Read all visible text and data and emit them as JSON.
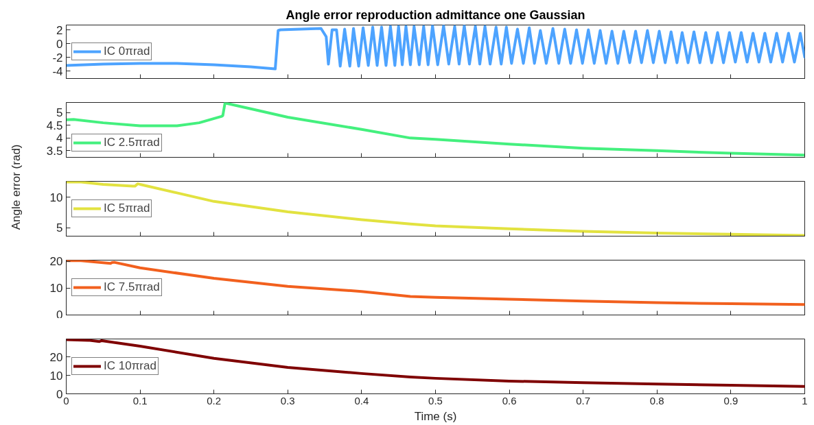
{
  "chart_data": [
    {
      "type": "line",
      "title": "Angle error reproduction admittance one Gaussian",
      "xlim": [
        0,
        1
      ],
      "xticks": [
        0,
        0.1,
        0.2,
        0.3,
        0.4,
        0.5,
        0.6,
        0.7,
        0.8,
        0.9,
        1
      ],
      "ylim": [
        -5.1,
        2.7
      ],
      "yticks": [
        -4,
        -2,
        0,
        2
      ],
      "tick_labels": "y",
      "legend": "left",
      "series": [
        {
          "name": "IC 0πrad",
          "color": "#4da3ff",
          "x": [
            0,
            0.05,
            0.1,
            0.15,
            0.2,
            0.25,
            0.283,
            0.287,
            0.29,
            0.345,
            0.352,
            0.355,
            0.36,
            0.366,
            0.371,
            0.377,
            0.384,
            0.389,
            0.396,
            0.402,
            0.409,
            0.415,
            0.421,
            0.427,
            0.433,
            0.439,
            0.445,
            0.45,
            0.455,
            0.46,
            0.466,
            0.471,
            0.478,
            0.484,
            0.49,
            0.496,
            0.503,
            0.511,
            0.518,
            0.526,
            0.532,
            0.539,
            0.546,
            0.554,
            0.56,
            0.567,
            0.574,
            0.582,
            0.589,
            0.596,
            0.603,
            0.611,
            0.619,
            0.627,
            0.634,
            0.642,
            0.65,
            0.659,
            0.667,
            0.675,
            0.683,
            0.691,
            0.699,
            0.707,
            0.715,
            0.723,
            0.731,
            0.739,
            0.747,
            0.755,
            0.763,
            0.771,
            0.779,
            0.787,
            0.795,
            0.803,
            0.811,
            0.819,
            0.827,
            0.834,
            0.842,
            0.85,
            0.858,
            0.866,
            0.874,
            0.882,
            0.89,
            0.898,
            0.906,
            0.914,
            0.922,
            0.93,
            0.938,
            0.946,
            0.954,
            0.962,
            0.97,
            0.978,
            0.986,
            0.994,
            1
          ],
          "values": [
            -3.2,
            -3.0,
            -2.9,
            -2.9,
            -3.1,
            -3.4,
            -3.7,
            1.9,
            2.0,
            2.2,
            1.0,
            -3.0,
            2.0,
            2.0,
            -3.3,
            2.1,
            -3.3,
            2.2,
            -3.3,
            2.3,
            -3.2,
            2.4,
            -3.2,
            2.4,
            -3.2,
            2.5,
            -3.2,
            2.5,
            -3.1,
            2.5,
            -3.1,
            2.5,
            -3.1,
            2.5,
            -3.1,
            2.6,
            -3.1,
            2.6,
            -3.0,
            2.5,
            -3.0,
            2.6,
            -3.0,
            2.5,
            -3.0,
            2.5,
            -3.0,
            2.4,
            -3.0,
            2.4,
            -2.9,
            2.1,
            -2.9,
            2.3,
            -2.9,
            1.9,
            -2.9,
            2.2,
            -2.9,
            2.1,
            -2.9,
            2.0,
            -2.9,
            2.0,
            -2.9,
            1.9,
            -2.9,
            1.8,
            -2.9,
            1.8,
            -2.8,
            1.8,
            -2.8,
            1.9,
            -2.8,
            1.8,
            -2.8,
            1.7,
            -2.8,
            1.6,
            -2.8,
            1.7,
            -2.8,
            1.6,
            -2.8,
            1.6,
            -2.8,
            1.6,
            -2.7,
            1.6,
            -2.7,
            1.5,
            -2.7,
            1.5,
            -2.7,
            1.5,
            -2.7,
            1.5,
            -2.7,
            1.5,
            -2.0
          ]
        }
      ]
    },
    {
      "type": "line",
      "xlim": [
        0,
        1
      ],
      "xticks": [
        0,
        0.1,
        0.2,
        0.3,
        0.4,
        0.5,
        0.6,
        0.7,
        0.8,
        0.9,
        1
      ],
      "ylim": [
        3.24,
        5.4
      ],
      "yticks": [
        3.5,
        4,
        4.5,
        5
      ],
      "tick_labels": "y",
      "legend": "bottom left",
      "series": [
        {
          "name": "IC 2.5πrad",
          "color": "#44f07e",
          "x": [
            0,
            0.01,
            0.05,
            0.1,
            0.15,
            0.18,
            0.21,
            0.212,
            0.215,
            0.25,
            0.3,
            0.4,
            0.466,
            0.5,
            0.6,
            0.7,
            0.8,
            0.9,
            1
          ],
          "values": [
            4.72,
            4.73,
            4.6,
            4.48,
            4.48,
            4.6,
            4.85,
            4.88,
            5.38,
            5.15,
            4.82,
            4.34,
            4.0,
            3.95,
            3.76,
            3.6,
            3.5,
            3.4,
            3.33
          ]
        }
      ]
    },
    {
      "type": "line",
      "ylabel": "Angle error (rad)",
      "xlim": [
        0,
        1
      ],
      "xticks": [
        0,
        0.1,
        0.2,
        0.3,
        0.4,
        0.5,
        0.6,
        0.7,
        0.8,
        0.9,
        1
      ],
      "ylim": [
        3.6,
        12.6
      ],
      "yticks": [
        5,
        10
      ],
      "tick_labels": "y",
      "legend": "left",
      "series": [
        {
          "name": "IC 5πrad",
          "color": "#e2e240",
          "x": [
            0,
            0.02,
            0.05,
            0.09,
            0.093,
            0.097,
            0.1,
            0.15,
            0.2,
            0.3,
            0.4,
            0.466,
            0.5,
            0.6,
            0.7,
            0.8,
            0.9,
            1
          ],
          "values": [
            12.5,
            12.5,
            12.1,
            11.8,
            11.8,
            12.2,
            12.1,
            10.7,
            9.3,
            7.6,
            6.3,
            5.6,
            5.3,
            4.8,
            4.4,
            4.1,
            3.9,
            3.7
          ]
        }
      ]
    },
    {
      "type": "line",
      "xlim": [
        0,
        1
      ],
      "xticks": [
        0,
        0.1,
        0.2,
        0.3,
        0.4,
        0.5,
        0.6,
        0.7,
        0.8,
        0.9,
        1
      ],
      "ylim": [
        0,
        20.5
      ],
      "yticks": [
        0,
        10,
        20
      ],
      "tick_labels": "y",
      "legend": "left",
      "series": [
        {
          "name": "IC 7.5πrad",
          "color": "#f2601e",
          "x": [
            0,
            0.02,
            0.06,
            0.062,
            0.065,
            0.1,
            0.2,
            0.3,
            0.4,
            0.466,
            0.5,
            0.6,
            0.7,
            0.8,
            0.9,
            1
          ],
          "values": [
            20.3,
            20.3,
            19.3,
            19.6,
            19.7,
            17.6,
            13.7,
            10.7,
            8.8,
            6.9,
            6.6,
            5.9,
            5.2,
            4.6,
            4.2,
            3.9
          ]
        }
      ]
    },
    {
      "type": "line",
      "xlabel": "Time (s)",
      "xlim": [
        0,
        1
      ],
      "xticks": [
        0,
        0.1,
        0.2,
        0.3,
        0.4,
        0.5,
        0.6,
        0.7,
        0.8,
        0.9,
        1
      ],
      "ylim": [
        0,
        29.7
      ],
      "yticks": [
        0,
        10,
        20
      ],
      "legend": "left",
      "series": [
        {
          "name": "IC 10πrad",
          "color": "#7f0000",
          "x": [
            0,
            0.03,
            0.045,
            0.048,
            0.1,
            0.2,
            0.3,
            0.4,
            0.466,
            0.5,
            0.6,
            0.7,
            0.8,
            0.9,
            1
          ],
          "values": [
            29.3,
            29.0,
            28.3,
            28.8,
            25.8,
            19.2,
            14.3,
            11.0,
            9.1,
            8.4,
            6.9,
            6.0,
            5.3,
            4.6,
            4.0
          ]
        }
      ]
    }
  ]
}
